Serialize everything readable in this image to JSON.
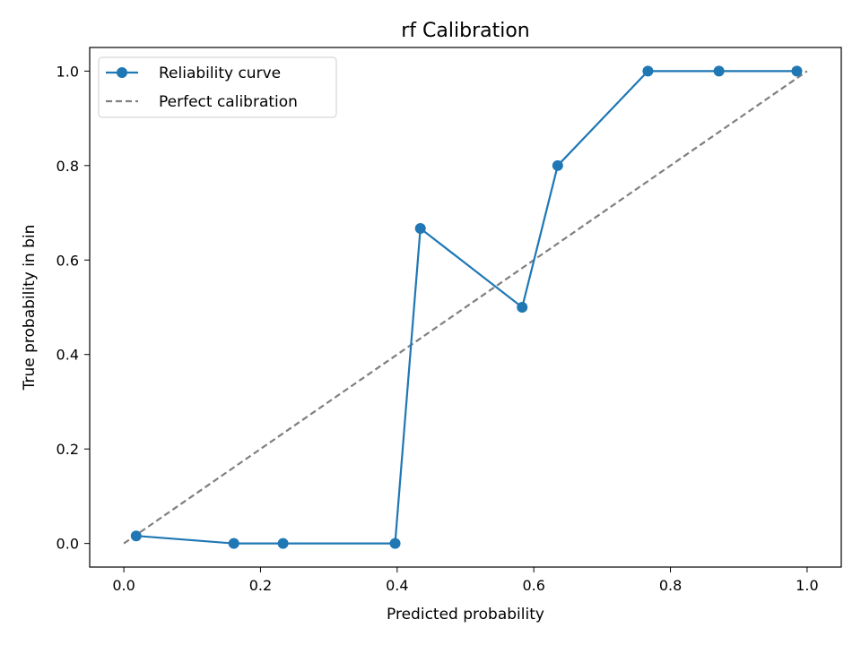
{
  "chart_data": {
    "type": "line",
    "title": "rf Calibration",
    "xlabel": "Predicted probability",
    "ylabel": "True probability in bin",
    "xlim": [
      -0.05,
      1.05
    ],
    "ylim": [
      -0.05,
      1.05
    ],
    "xticks": [
      0.0,
      0.2,
      0.4,
      0.6,
      0.8,
      1.0
    ],
    "xtick_labels": [
      "0.0",
      "0.2",
      "0.4",
      "0.6",
      "0.8",
      "1.0"
    ],
    "yticks": [
      0.0,
      0.2,
      0.4,
      0.6,
      0.8,
      1.0
    ],
    "ytick_labels": [
      "0.0",
      "0.2",
      "0.4",
      "0.6",
      "0.8",
      "1.0"
    ],
    "grid": false,
    "legend_position": "top-left",
    "series": [
      {
        "name": "Reliability curve",
        "style": "solid-with-markers",
        "color": "#1f77b4",
        "x": [
          0.018,
          0.161,
          0.233,
          0.397,
          0.434,
          0.583,
          0.635,
          0.767,
          0.871,
          0.985
        ],
        "y": [
          0.016,
          0.0,
          0.0,
          0.0,
          0.667,
          0.5,
          0.8,
          1.0,
          1.0,
          1.0
        ]
      },
      {
        "name": "Perfect calibration",
        "style": "dashed",
        "color": "#7f7f7f",
        "x": [
          0.0,
          1.0
        ],
        "y": [
          0.0,
          1.0
        ]
      }
    ]
  }
}
